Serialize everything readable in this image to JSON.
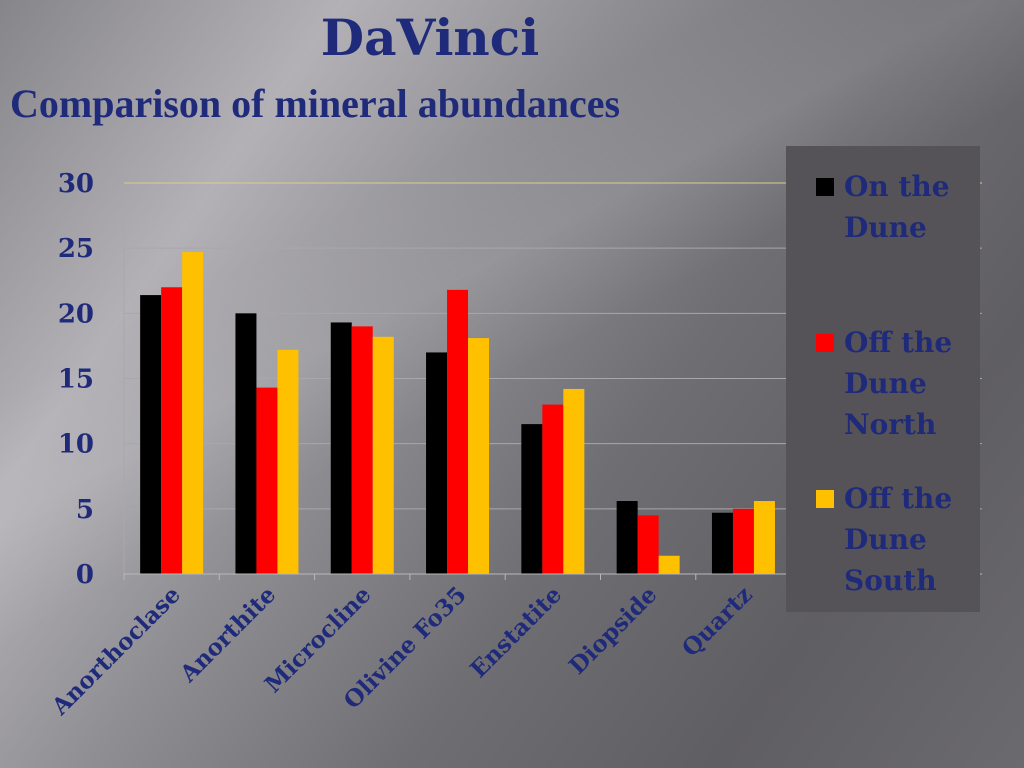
{
  "slide": {
    "title": "DaVinci",
    "subtitle": "Comparison of mineral abundances"
  },
  "colors": {
    "text": "#1f2b7a",
    "series": [
      "#000000",
      "#ff0000",
      "#ffc000"
    ]
  },
  "chart_data": {
    "type": "bar",
    "title": "",
    "xlabel": "",
    "ylabel": "",
    "categories": [
      "Anorthoclase",
      "Anorthite",
      "Microcline",
      "Olivine Fo35",
      "Enstatite",
      "Diopside",
      "Quartz"
    ],
    "series": [
      {
        "name": "On the Dune",
        "values": [
          21.4,
          20.0,
          19.3,
          17.0,
          11.5,
          5.6,
          4.7
        ]
      },
      {
        "name": "Off the Dune North",
        "values": [
          22.0,
          14.3,
          19.0,
          21.8,
          13.0,
          4.5,
          5.0
        ]
      },
      {
        "name": "Off the Dune South",
        "values": [
          24.7,
          17.2,
          18.2,
          18.1,
          14.2,
          1.4,
          5.6
        ]
      }
    ],
    "ylim": [
      0,
      30
    ],
    "yticks": [
      "0",
      "5",
      "10",
      "15",
      "20",
      "25",
      "30"
    ],
    "grid": true,
    "legend_position": "right"
  }
}
